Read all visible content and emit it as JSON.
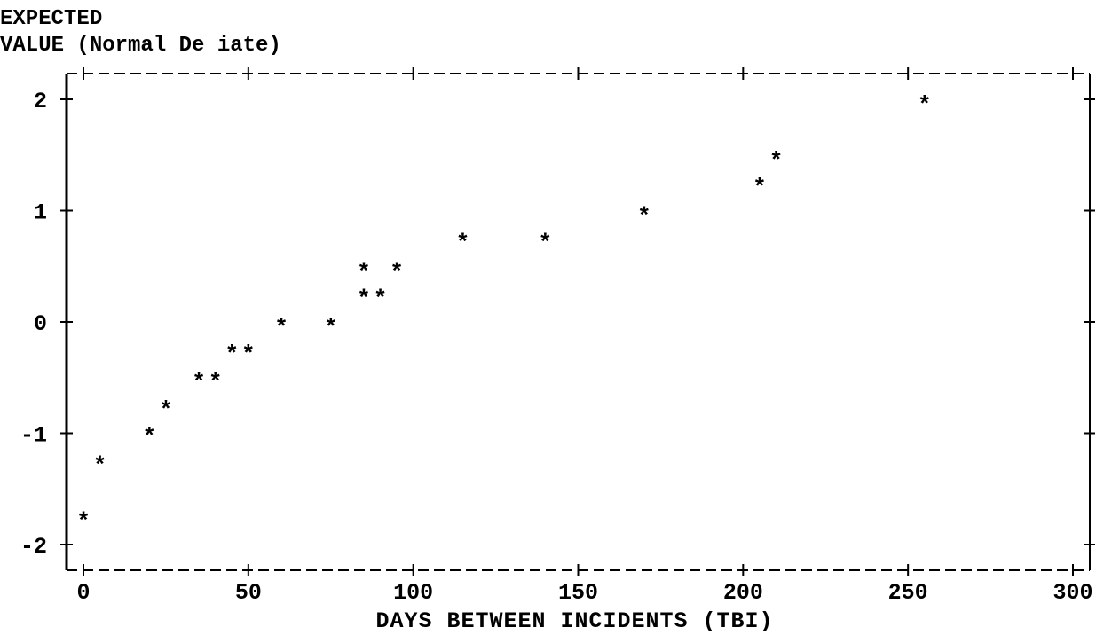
{
  "chart_data": {
    "type": "scatter",
    "ylabel_line1": "EXPECTED",
    "ylabel_line2": "VALUE (Normal De iate)",
    "xlabel": "DAYS BETWEEN INCIDENTS (TBI)",
    "xlim": [
      0,
      300
    ],
    "ylim": [
      -2,
      2
    ],
    "x_ticks": [
      0,
      50,
      100,
      150,
      200,
      250,
      300
    ],
    "x_tick_labels": [
      "0",
      "50",
      "100",
      "150",
      "200",
      "250",
      "300"
    ],
    "y_ticks": [
      2,
      1,
      0,
      -1,
      -2
    ],
    "y_tick_labels": [
      "2",
      "1",
      "0",
      "-1",
      "-2"
    ],
    "marker": "*",
    "grid": false,
    "points": [
      {
        "x": 0,
        "y": -1.74
      },
      {
        "x": 5,
        "y": -1.24
      },
      {
        "x": 20,
        "y": -0.98
      },
      {
        "x": 25,
        "y": -0.74
      },
      {
        "x": 35,
        "y": -0.49
      },
      {
        "x": 40,
        "y": -0.49
      },
      {
        "x": 45,
        "y": -0.24
      },
      {
        "x": 50,
        "y": -0.24
      },
      {
        "x": 60,
        "y": 0.0
      },
      {
        "x": 75,
        "y": 0.0
      },
      {
        "x": 85,
        "y": 0.26
      },
      {
        "x": 90,
        "y": 0.26
      },
      {
        "x": 85,
        "y": 0.5
      },
      {
        "x": 95,
        "y": 0.5
      },
      {
        "x": 115,
        "y": 0.76
      },
      {
        "x": 140,
        "y": 0.76
      },
      {
        "x": 170,
        "y": 1.0
      },
      {
        "x": 205,
        "y": 1.26
      },
      {
        "x": 210,
        "y": 1.5
      },
      {
        "x": 255,
        "y": 2.0
      }
    ]
  }
}
